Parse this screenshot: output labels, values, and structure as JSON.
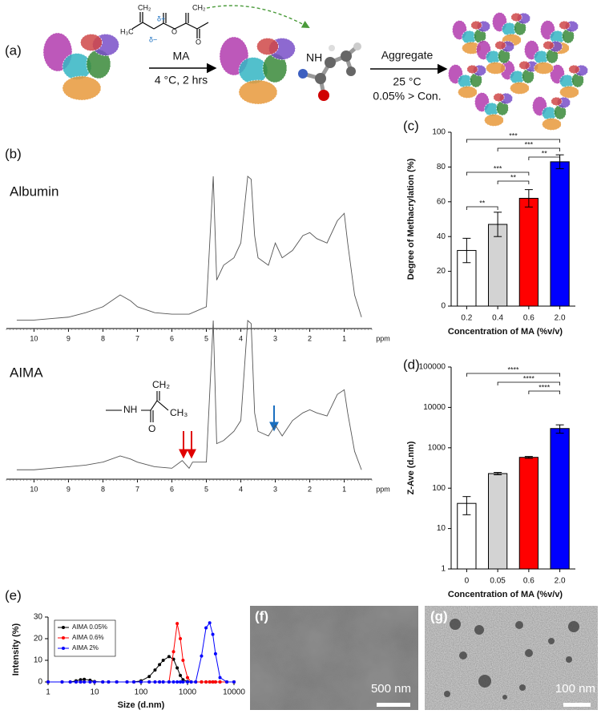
{
  "scheme": {
    "panel": "(a)",
    "reagent": "MA",
    "step1": "4 °C, 2 hrs",
    "step2": "Aggregate",
    "temperature": "25 °C",
    "condition": "0.05% > Con.",
    "amide": "NH",
    "atoms": [
      "CH₂",
      "CH₂",
      "H₃C",
      "δ+",
      "δ−",
      "O",
      "O"
    ]
  },
  "structure": {
    "atoms": [
      "NH",
      "CH₂",
      "CH₃",
      "O"
    ]
  },
  "chart_data": [
    {
      "type": "line",
      "panel": "(b)",
      "title": "Albumin",
      "xlabel": "ppm",
      "x": [
        10.5,
        10,
        9.5,
        9,
        8.5,
        8,
        7.5,
        7.2,
        7,
        6.5,
        6,
        5.5,
        5,
        4.8,
        4.7,
        4.5,
        4.2,
        4,
        3.8,
        3.7,
        3.6,
        3.5,
        3.2,
        3,
        2.8,
        2.5,
        2.2,
        2,
        1.8,
        1.5,
        1.2,
        1,
        0.9,
        0.7,
        0.5
      ],
      "values": [
        3,
        3,
        4,
        5,
        8,
        12,
        20,
        16,
        12,
        8,
        7,
        7,
        12,
        100,
        30,
        40,
        45,
        55,
        100,
        98,
        60,
        45,
        40,
        55,
        45,
        50,
        60,
        62,
        58,
        55,
        70,
        75,
        55,
        20,
        5
      ],
      "color": "#555555",
      "xlim": [
        10.8,
        0.2
      ],
      "xticks": [
        10,
        9,
        8,
        7,
        6,
        5,
        4,
        3,
        2,
        1
      ],
      "ylim": [
        0,
        100
      ]
    },
    {
      "type": "line",
      "title": "AIMA",
      "xlabel": "ppm",
      "x": [
        10.5,
        10,
        9.5,
        9,
        8.5,
        8,
        7.5,
        7.2,
        7,
        6.5,
        6,
        5.7,
        5.5,
        5.4,
        5,
        4.8,
        4.7,
        4.5,
        4.2,
        4,
        3.8,
        3.7,
        3.6,
        3.5,
        3.2,
        3,
        2.8,
        2.5,
        2.2,
        2,
        1.8,
        1.5,
        1.2,
        1,
        0.9,
        0.7,
        0.5
      ],
      "values": [
        3,
        3,
        4,
        5,
        6,
        8,
        12,
        10,
        8,
        5,
        4,
        9,
        4,
        8,
        8,
        100,
        20,
        22,
        28,
        35,
        100,
        98,
        40,
        28,
        25,
        32,
        25,
        35,
        40,
        42,
        40,
        38,
        52,
        55,
        40,
        15,
        3
      ],
      "color": "#555555",
      "xlim": [
        10.8,
        0.2
      ],
      "xticks": [
        10,
        9,
        8,
        7,
        6,
        5,
        4,
        3,
        2,
        1
      ],
      "ylim": [
        0,
        100
      ]
    },
    {
      "type": "bar",
      "panel": "(c)",
      "ylabel": "Degree of Methacrylation (%)",
      "xlabel": "Concentration of MA (%v/v)",
      "categories": [
        "0.2",
        "0.4",
        "0.6",
        "2.0"
      ],
      "values": [
        32,
        47,
        62,
        83
      ],
      "errors": [
        7,
        7,
        5,
        4
      ],
      "colors": [
        "#ffffff",
        "#d3d3d3",
        "#ff0000",
        "#0000ff"
      ],
      "ylim": [
        0,
        100
      ],
      "yticks": [
        0,
        20,
        40,
        60,
        80,
        100
      ],
      "annotations": [
        "***",
        "***",
        "**",
        "***",
        "**",
        "**"
      ]
    },
    {
      "type": "bar",
      "panel": "(d)",
      "ylabel": "Z-Ave (d.nm)",
      "xlabel": "Concentration of MA (%v/v)",
      "categories": [
        "0",
        "0.05",
        "0.6",
        "2.0"
      ],
      "values": [
        42,
        230,
        580,
        3000
      ],
      "errors": [
        20,
        15,
        30,
        700
      ],
      "colors": [
        "#ffffff",
        "#d3d3d3",
        "#ff0000",
        "#0000ff"
      ],
      "yscale": "log",
      "ylim": [
        1,
        100000
      ],
      "yticks": [
        1,
        10,
        100,
        1000,
        10000,
        100000
      ],
      "annotations": [
        "****",
        "****",
        "****"
      ]
    },
    {
      "type": "line",
      "panel": "(e)",
      "xlabel": "Size (d.nm)",
      "ylabel": "Intensity (%)",
      "xscale": "log",
      "markers": true,
      "legend": "upper left",
      "x": [
        1,
        2,
        3,
        4,
        5,
        6,
        8,
        10,
        15,
        20,
        30,
        50,
        70,
        100,
        150,
        200,
        250,
        300,
        400,
        500,
        600,
        700,
        800,
        1000,
        1200,
        1500,
        2000,
        2500,
        3000,
        3500,
        4000,
        5000,
        7000,
        10000
      ],
      "series": [
        {
          "name": "AIMA 0.05%",
          "color": "#000000",
          "values": [
            0,
            0,
            0,
            0.5,
            1,
            1.2,
            0.8,
            0.2,
            0,
            0,
            0,
            0,
            0,
            0.5,
            2.5,
            5.5,
            8,
            10,
            11.7,
            10.5,
            6.5,
            3,
            1,
            0.2,
            0,
            0,
            0,
            0,
            0,
            0,
            0,
            0,
            0,
            0
          ]
        },
        {
          "name": "AIMA 0.6%",
          "color": "#ff0000",
          "values": [
            0,
            0,
            0,
            0,
            0,
            0,
            0,
            0,
            0,
            0,
            0,
            0,
            0,
            0,
            0,
            0,
            0,
            0,
            0,
            14,
            27,
            20,
            10,
            2,
            0,
            0,
            0,
            0,
            0,
            0,
            0,
            0,
            0,
            0
          ]
        },
        {
          "name": "AIMA 2%",
          "color": "#0000ff",
          "values": [
            0,
            0,
            0,
            0,
            0,
            0,
            0,
            0,
            0,
            0,
            0,
            0,
            0,
            0,
            0,
            0,
            0,
            0,
            0,
            0,
            0,
            0,
            0,
            0,
            0,
            0,
            12,
            25,
            27.3,
            22,
            13,
            2,
            0,
            0
          ]
        }
      ],
      "xlim": [
        1,
        10000
      ],
      "xticks": [
        1,
        10,
        100,
        1000,
        10000
      ],
      "ylim": [
        0,
        30
      ],
      "yticks": [
        0,
        10,
        20,
        30
      ]
    }
  ],
  "images": [
    {
      "panel": "(f)",
      "scale": "500 nm"
    },
    {
      "panel": "(g)",
      "scale": "100 nm"
    }
  ]
}
